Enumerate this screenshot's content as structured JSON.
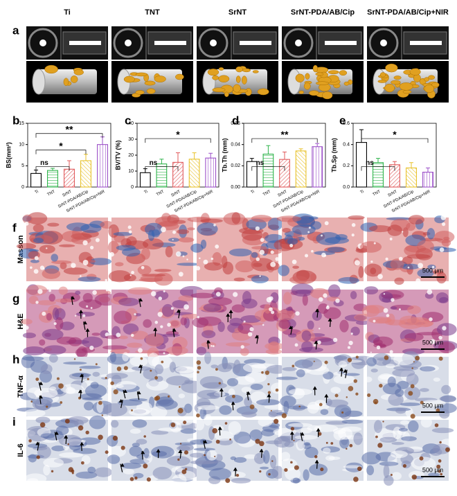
{
  "figure": {
    "columns": [
      "Ti",
      "TNT",
      "SrNT",
      "SrNT-PDA/AB/Cip",
      "SrNT-PDA/AB/Cip+NIR"
    ],
    "panels": [
      "a",
      "b",
      "c",
      "d",
      "e",
      "f",
      "g",
      "h",
      "i"
    ],
    "rows": [
      {
        "label": "Masson",
        "scale_bar": "500 μm"
      },
      {
        "label": "H&E",
        "scale_bar": "500 μm"
      },
      {
        "label": "TNF-α",
        "scale_bar": "500 μm"
      },
      {
        "label": "IL-6",
        "scale_bar": "500 μm"
      }
    ]
  },
  "chart_data": [
    {
      "type": "bar",
      "ylabel": "BS(mm²)",
      "categories": [
        "Ti",
        "TNT",
        "SrNT",
        "SrNT-PDA/AB/Cip",
        "SrNT-PDA/AB/Cip+NIR"
      ],
      "values": [
        3.2,
        3.9,
        4.2,
        6.2,
        10.0
      ],
      "errors": [
        0.8,
        0.5,
        2.0,
        1.5,
        1.8
      ],
      "colors": [
        "#000000",
        "#2db34a",
        "#e0585a",
        "#e8c22a",
        "#9b4fc8"
      ],
      "ylim": [
        0,
        15
      ],
      "yticks": [
        0,
        5,
        10,
        15
      ],
      "annotations": [
        "ns",
        "*",
        "**"
      ]
    },
    {
      "type": "bar",
      "ylabel": "BV/TV (%)",
      "categories": [
        "Ti",
        "TNT",
        "SrNT",
        "SrNT-PDA/AB/Cip",
        "SrNT-PDA/AB/Cip+NIR"
      ],
      "values": [
        9,
        14.5,
        15.5,
        17.5,
        18.2
      ],
      "errors": [
        2.5,
        3,
        6,
        4,
        3
      ],
      "colors": [
        "#000000",
        "#2db34a",
        "#e0585a",
        "#e8c22a",
        "#9b4fc8"
      ],
      "ylim": [
        0,
        40
      ],
      "yticks": [
        0,
        10,
        20,
        30,
        40
      ],
      "annotations": [
        "ns",
        "*"
      ]
    },
    {
      "type": "bar",
      "ylabel": "Tb.Th (mm)",
      "categories": [
        "Ti",
        "TNT",
        "SrNT",
        "SrNT-PDA/AB/Cip",
        "SrNT-PDA/AB/Cip+NIR"
      ],
      "values": [
        0.024,
        0.031,
        0.026,
        0.034,
        0.038
      ],
      "errors": [
        0.003,
        0.008,
        0.007,
        0.002,
        0.003
      ],
      "colors": [
        "#000000",
        "#2db34a",
        "#e0585a",
        "#e8c22a",
        "#9b4fc8"
      ],
      "ylim": [
        0,
        0.06
      ],
      "yticks": [
        {
          "value": 0,
          "label": "0.00"
        },
        {
          "value": 0.02,
          "label": "0.02"
        },
        {
          "value": 0.04,
          "label": "0.04"
        },
        {
          "value": 0.06,
          "label": "0.06"
        }
      ],
      "annotations": [
        "ns",
        "**"
      ]
    },
    {
      "type": "bar",
      "ylabel": "Tb.Sp (mm)",
      "categories": [
        "Ti",
        "TNT",
        "SrNT",
        "SrNT-PDA/AB/Cip",
        "SrNT-PDA/AB/Cip+NIR"
      ],
      "values": [
        0.42,
        0.23,
        0.21,
        0.18,
        0.14
      ],
      "errors": [
        0.12,
        0.04,
        0.03,
        0.05,
        0.04
      ],
      "colors": [
        "#000000",
        "#2db34a",
        "#e0585a",
        "#e8c22a",
        "#9b4fc8"
      ],
      "ylim": [
        0,
        0.6
      ],
      "yticks": [
        {
          "value": 0,
          "label": "0.0"
        },
        {
          "value": 0.2,
          "label": "0.2"
        },
        {
          "value": 0.4,
          "label": "0.4"
        },
        {
          "value": 0.6,
          "label": "0.6"
        }
      ],
      "annotations": [
        "ns",
        "*"
      ]
    }
  ]
}
